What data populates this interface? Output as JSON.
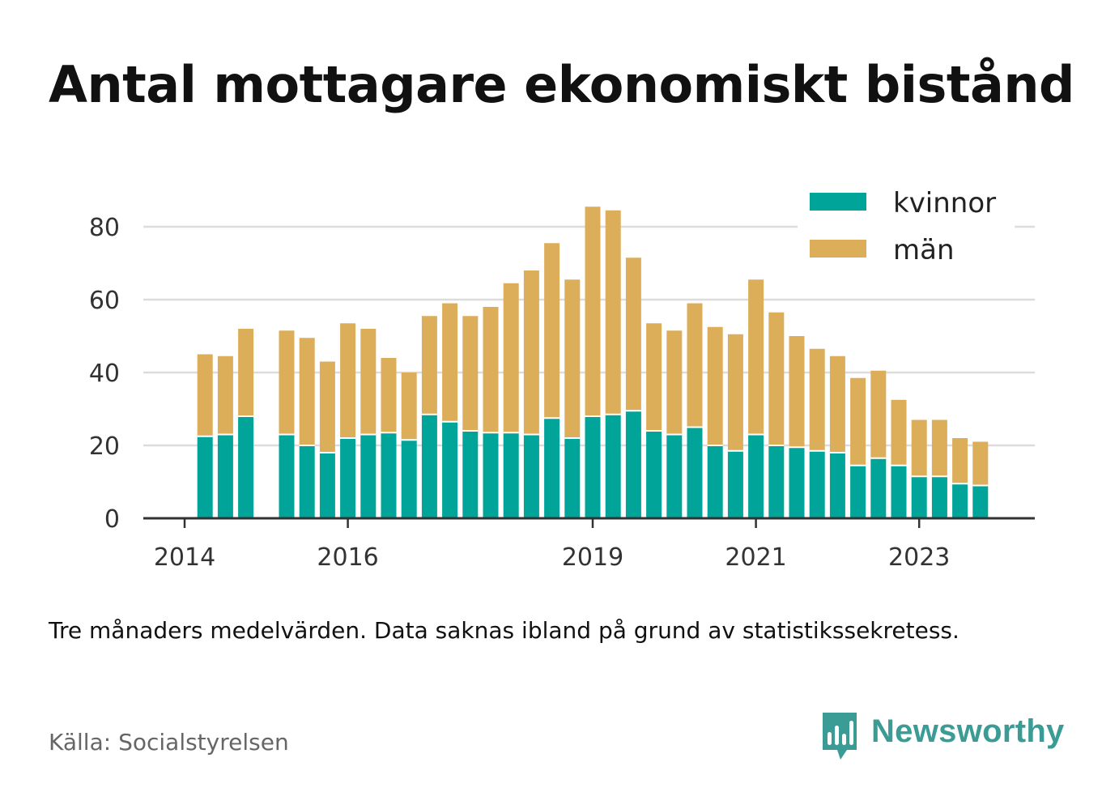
{
  "title": "Antal mottagare ekonomiskt bistånd",
  "subtitle": "Tre månaders medelvärden. Data saknas ibland på grund av statistikssekretess.",
  "source": "Källa: Socialstyrelsen",
  "brand": {
    "name": "Newsworthy",
    "icon": "newsworthy-logo-icon",
    "color": "#3a9c94"
  },
  "chart_data": {
    "type": "bar",
    "stacked": true,
    "x": [
      2014.25,
      2014.5,
      2014.75,
      2015.25,
      2015.5,
      2015.75,
      2016.0,
      2016.25,
      2016.5,
      2016.75,
      2017.0,
      2017.25,
      2017.5,
      2017.75,
      2018.0,
      2018.25,
      2018.5,
      2018.75,
      2019.0,
      2019.25,
      2019.5,
      2019.75,
      2020.0,
      2020.25,
      2020.5,
      2020.75,
      2021.0,
      2021.25,
      2021.5,
      2021.75,
      2022.0,
      2022.25,
      2022.5,
      2022.75,
      2023.0,
      2023.25,
      2023.5,
      2023.75
    ],
    "series": [
      {
        "name": "kvinnor",
        "color": "#00a498",
        "values": [
          22.5,
          23,
          28,
          23,
          20,
          18,
          22,
          23,
          23.5,
          21.5,
          28.5,
          26.5,
          24,
          23.5,
          23.5,
          23,
          27.5,
          22,
          28,
          28.5,
          29.5,
          24,
          23,
          25,
          20,
          18.5,
          23,
          20,
          19.5,
          18.5,
          18,
          14.5,
          16.5,
          14.5,
          11.5,
          11.5,
          9.5,
          9
        ]
      },
      {
        "name": "män",
        "color": "#dcae5a",
        "values": [
          22.5,
          21.5,
          24,
          28.5,
          29.5,
          25,
          31.5,
          29,
          20.5,
          18.5,
          27,
          32.5,
          31.5,
          34.5,
          41,
          45,
          48,
          43.5,
          57.5,
          56,
          42,
          29.5,
          28.5,
          34,
          32.5,
          32,
          42.5,
          36.5,
          30.5,
          28,
          26.5,
          24,
          24,
          18,
          15.5,
          15.5,
          12.5,
          12
        ]
      }
    ],
    "xticks": [
      2014,
      2016,
      2019,
      2021,
      2023
    ],
    "xtick_labels": [
      "2014",
      "2016",
      "2019",
      "2021",
      "2023"
    ],
    "yticks": [
      0,
      20,
      40,
      60,
      80
    ],
    "ylim": [
      0,
      90
    ],
    "xlim": [
      2013.5,
      2024.5
    ],
    "grid": true,
    "legend_position": "top-right"
  }
}
